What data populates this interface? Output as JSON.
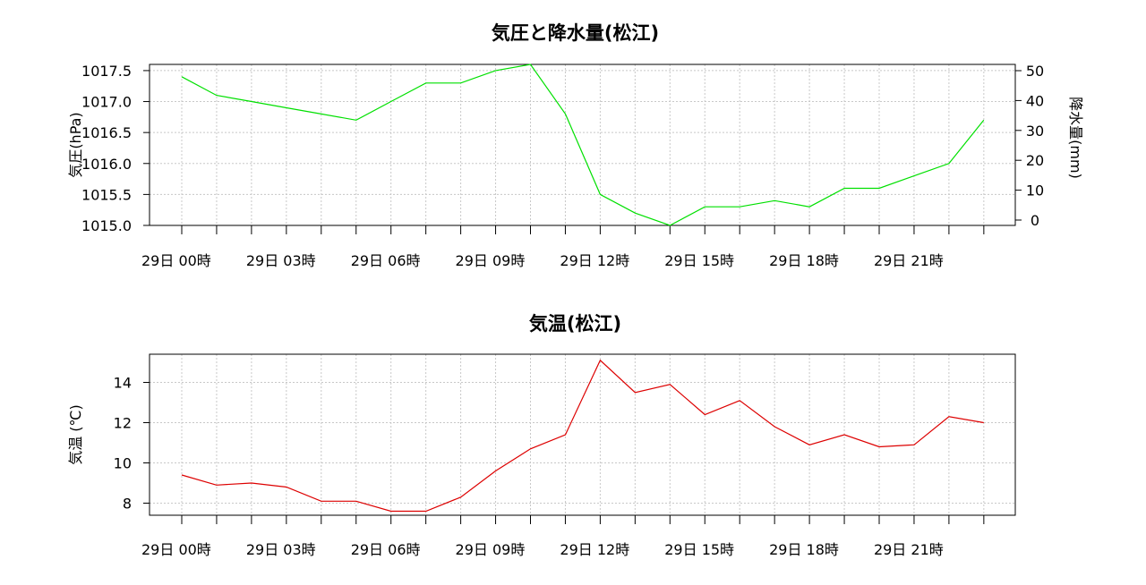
{
  "chart_data": [
    {
      "type": "line",
      "title": "気圧と降水量(松江)",
      "ylabel": "気圧(hPa)",
      "y2label": "降水量(mm)",
      "x_tick_labels": [
        "29日 00時",
        "29日 03時",
        "29日 06時",
        "29日 09時",
        "29日 12時",
        "29日 15時",
        "29日 18時",
        "29日 21時"
      ],
      "hours": [
        0,
        1,
        2,
        3,
        4,
        5,
        6,
        7,
        8,
        9,
        10,
        11,
        12,
        13,
        14,
        15,
        16,
        17,
        18,
        19,
        20,
        21,
        22,
        23
      ],
      "ylim": [
        1015.0,
        1017.6
      ],
      "yticks": [
        1015.0,
        1015.5,
        1016.0,
        1016.5,
        1017.0,
        1017.5
      ],
      "ytick_labels": [
        "1015.0",
        "1015.5",
        "1016.0",
        "1016.5",
        "1017.0",
        "1017.5"
      ],
      "y2lim": [
        0,
        50
      ],
      "y2ticks": [
        0,
        10,
        20,
        30,
        40,
        50
      ],
      "y2tick_labels": [
        "0",
        "10",
        "20",
        "30",
        "40",
        "50"
      ],
      "grid": true,
      "series": [
        {
          "axis": "left",
          "color": "#00e000",
          "values": [
            1017.4,
            1017.1,
            1017.0,
            1016.9,
            1016.8,
            1016.7,
            1017.0,
            1017.3,
            1017.3,
            1017.5,
            1017.6,
            1016.8,
            1015.5,
            1015.2,
            1015.0,
            1015.3,
            1015.3,
            1015.4,
            1015.3,
            1015.6,
            1015.6,
            1015.8,
            1016.0,
            1016.7
          ]
        },
        {
          "axis": "right",
          "color": "#0000cc",
          "values": [
            0,
            0,
            0,
            0,
            0,
            0,
            0,
            0,
            0,
            0,
            0,
            0,
            0,
            0,
            0,
            0,
            0,
            0,
            0,
            0,
            0,
            0,
            0,
            0
          ]
        }
      ]
    },
    {
      "type": "line",
      "title": "気温(松江)",
      "ylabel": "気温 (℃)",
      "x_tick_labels": [
        "29日 00時",
        "29日 03時",
        "29日 06時",
        "29日 09時",
        "29日 12時",
        "29日 15時",
        "29日 18時",
        "29日 21時"
      ],
      "hours": [
        0,
        1,
        2,
        3,
        4,
        5,
        6,
        7,
        8,
        9,
        10,
        11,
        12,
        13,
        14,
        15,
        16,
        17,
        18,
        19,
        20,
        21,
        22,
        23
      ],
      "ylim": [
        7.4,
        15.4
      ],
      "yticks": [
        8,
        10,
        12,
        14
      ],
      "ytick_labels": [
        "8",
        "10",
        "12",
        "14"
      ],
      "grid": true,
      "series": [
        {
          "axis": "left",
          "color": "#dd0000",
          "values": [
            9.4,
            8.9,
            9.0,
            8.8,
            8.1,
            8.1,
            7.6,
            7.6,
            8.3,
            9.6,
            10.7,
            11.4,
            15.1,
            13.5,
            13.9,
            12.4,
            13.1,
            11.8,
            10.9,
            11.4,
            10.8,
            10.9,
            12.3,
            12.0
          ]
        }
      ]
    }
  ]
}
